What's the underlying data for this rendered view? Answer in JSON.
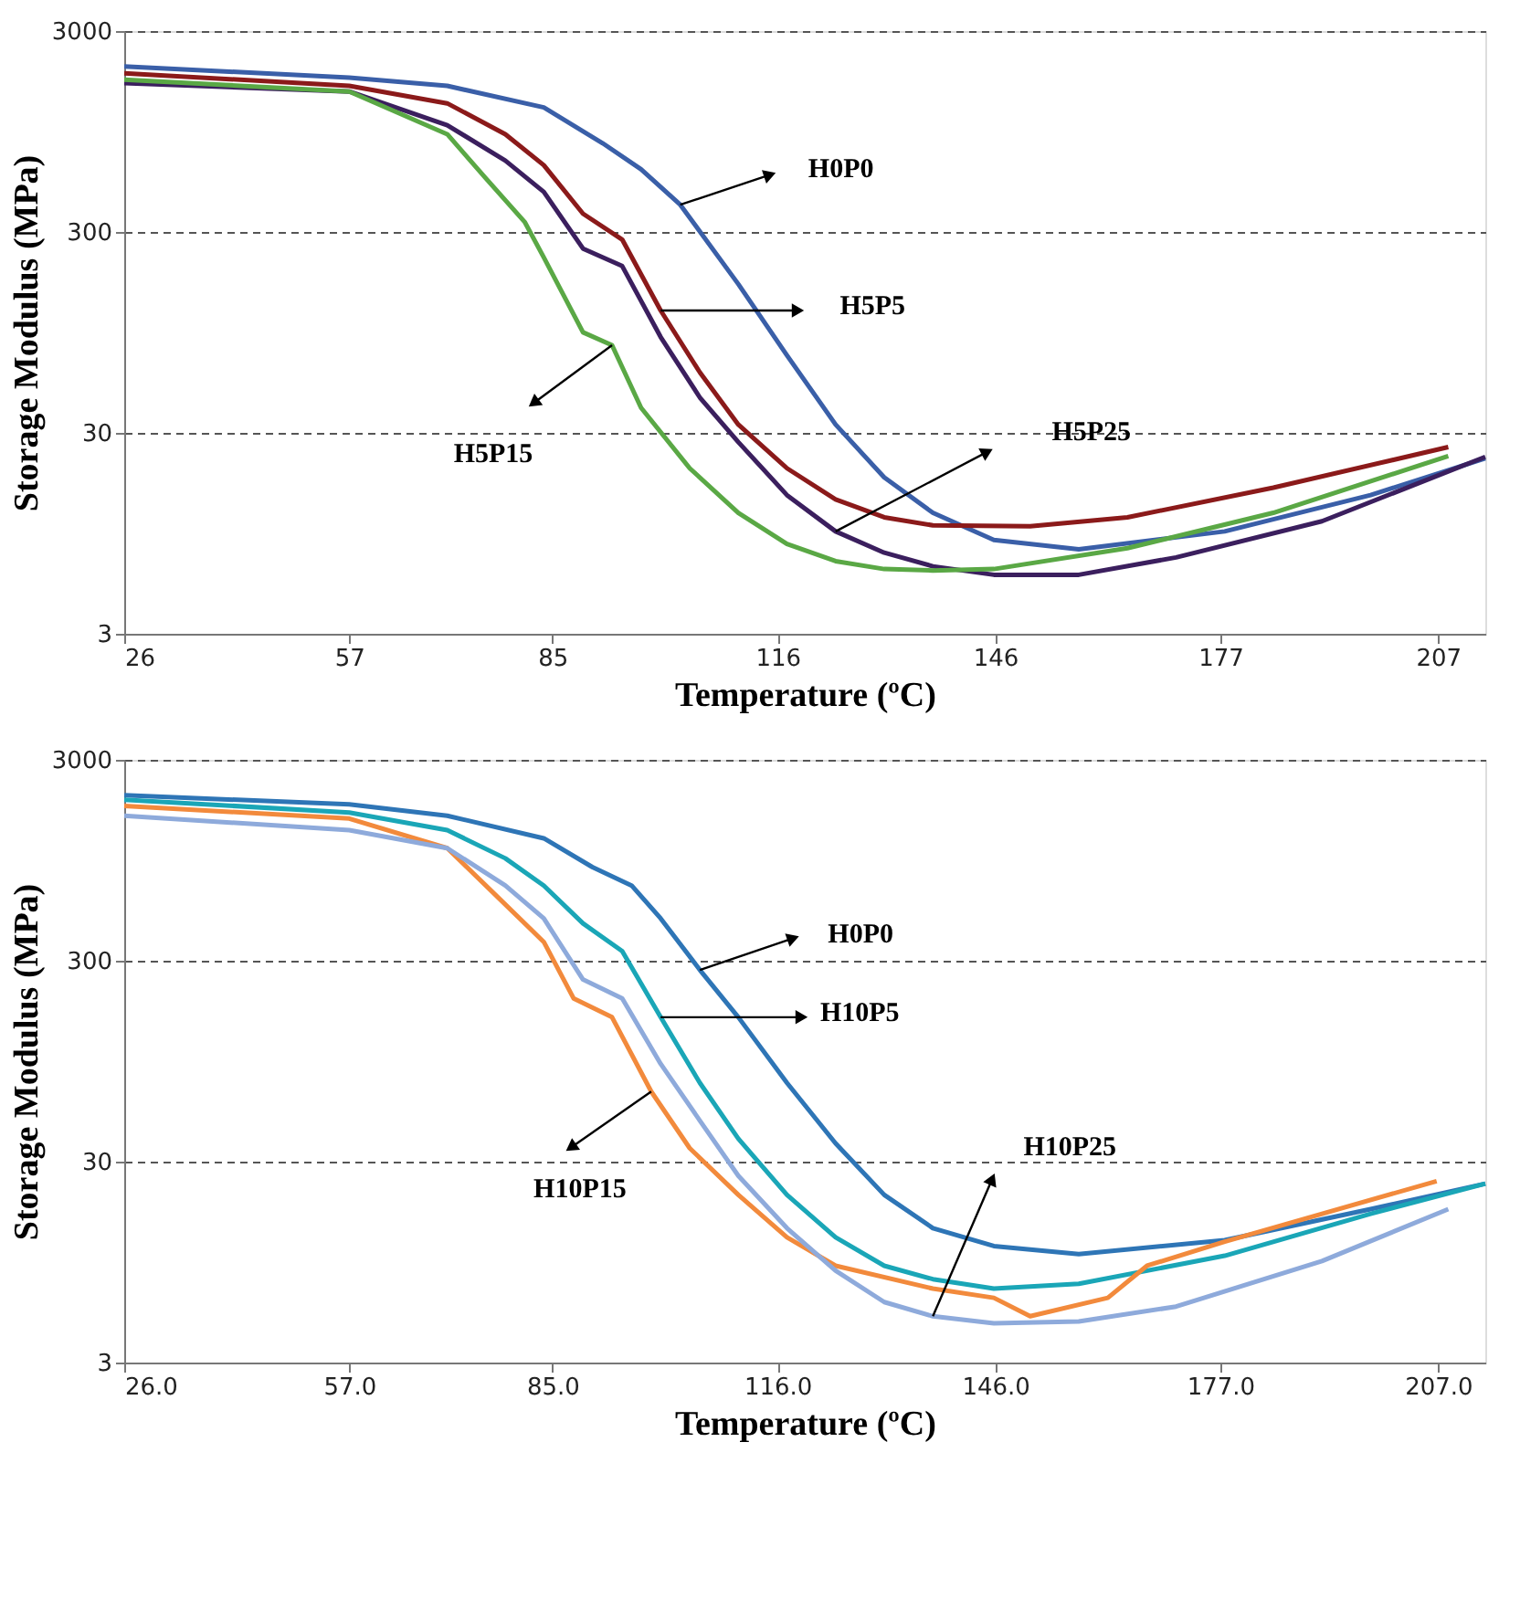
{
  "chart_data": [
    {
      "type": "line",
      "xlabel": "Temperature (ºC)",
      "ylabel": "Storage Modulus (MPa)",
      "log": "y",
      "grid": "y",
      "legend": false,
      "marker": "none",
      "line_style": "solid",
      "xlim": [
        26,
        213.5
      ],
      "xticks": [
        26,
        57,
        85,
        116,
        146,
        177,
        207
      ],
      "ylim": [
        3,
        3000
      ],
      "yticks": [
        3,
        30,
        300,
        3000
      ],
      "series": [
        {
          "color": "#3a5fa8",
          "x": [
            26,
            57,
            70.5,
            83.8,
            91.9,
            97.2,
            102.6,
            110.6,
            117.3,
            124,
            130.7,
            137.4,
            145.8,
            157.5,
            177.6,
            197.7,
            213.5
          ],
          "values": [
            2000,
            1760,
            1600,
            1250,
            830,
            615,
            410,
            165,
            73,
            33,
            18,
            12,
            8.8,
            7.9,
            9.7,
            14.7,
            22.4
          ]
        },
        {
          "color": "#8b1a1a",
          "x": [
            26,
            57,
            70.5,
            78.5,
            83.8,
            89.2,
            94.6,
            99.9,
            105.3,
            110.6,
            117.3,
            124,
            130.7,
            137.4,
            150.8,
            164.2,
            184.3,
            208.4
          ],
          "values": [
            1850,
            1600,
            1310,
            920,
            645,
            370,
            275,
            122,
            60,
            33,
            20,
            14,
            11.4,
            10.4,
            10.3,
            11.4,
            16,
            25.5
          ]
        },
        {
          "color": "#3b1f5e",
          "x": [
            26,
            57,
            70.5,
            78.5,
            83.8,
            89.2,
            94.6,
            99.9,
            105.3,
            110.6,
            117.3,
            124,
            130.7,
            137.4,
            145.8,
            157.5,
            170.9,
            191,
            213.5
          ],
          "values": [
            1650,
            1500,
            1020,
            680,
            475,
            248,
            203,
            90,
            45,
            27,
            14.7,
            9.7,
            7.6,
            6.5,
            5.9,
            5.9,
            7.2,
            10.9,
            22.8
          ]
        },
        {
          "color": "#5aa845",
          "x": [
            26,
            57,
            70.5,
            75.8,
            81.2,
            83.8,
            89.2,
            93.2,
            97.2,
            103.9,
            110.6,
            117.3,
            124,
            130.7,
            137.4,
            145.8,
            164.2,
            184.3,
            208.4
          ],
          "values": [
            1720,
            1500,
            920,
            555,
            335,
            224,
            95,
            82,
            40,
            20,
            12,
            8.4,
            6.9,
            6.3,
            6.2,
            6.3,
            8,
            12,
            23
          ]
        }
      ],
      "annotations": [
        "H0P0",
        "H5P5",
        "H5P15",
        "H5P25"
      ]
    },
    {
      "type": "line",
      "xlabel": "Temperature (ºC)",
      "ylabel": "Storage Modulus (MPa)",
      "log": "y",
      "grid": "y",
      "legend": false,
      "marker": "none",
      "line_style": "solid",
      "xlim": [
        26,
        213.5
      ],
      "xticks": [
        {
          "value": 26,
          "label": "26.0"
        },
        {
          "value": 57,
          "label": "57.0"
        },
        {
          "value": 85,
          "label": "85.0"
        },
        {
          "value": 116,
          "label": "116.0"
        },
        {
          "value": 146,
          "label": "146.0"
        },
        {
          "value": 177,
          "label": "177.0"
        },
        {
          "value": 207,
          "label": "207.0"
        }
      ],
      "ylim": [
        3,
        3000
      ],
      "yticks": [
        3,
        30,
        300,
        3000
      ],
      "series": [
        {
          "color": "#2e75b6",
          "x": [
            26,
            57,
            70.5,
            83.8,
            90.5,
            95.9,
            99.9,
            105.3,
            110.6,
            117.3,
            124,
            130.7,
            137.4,
            145.8,
            157.5,
            177.6,
            197.7,
            213.5
          ],
          "values": [
            2000,
            1800,
            1580,
            1220,
            877,
            710,
            487,
            270,
            157,
            74,
            37,
            20.5,
            14,
            11.4,
            10.4,
            12.2,
            17.4,
            23.3
          ]
        },
        {
          "color": "#1aa6b7",
          "x": [
            26,
            57,
            70.5,
            78.5,
            83.8,
            89.2,
            94.6,
            99.9,
            105.3,
            110.6,
            117.3,
            124,
            130.7,
            137.4,
            145.8,
            157.5,
            177.6,
            197.7,
            213.5
          ],
          "values": [
            1900,
            1640,
            1340,
            970,
            710,
            460,
            335,
            157,
            74,
            39,
            20.5,
            12.6,
            9.1,
            7.8,
            7,
            7.4,
            10.2,
            16.5,
            23.3
          ]
        },
        {
          "color": "#f28a3c",
          "x": [
            26,
            57,
            70.5,
            77.2,
            83.8,
            87.9,
            93.2,
            98.6,
            103.9,
            110.6,
            117.3,
            124,
            137.4,
            145.8,
            150.8,
            161.5,
            166.9,
            177.6,
            206.8
          ],
          "values": [
            1770,
            1530,
            1090,
            635,
            372,
            195,
            157,
            67,
            35,
            20.5,
            12.6,
            9.1,
            7,
            6.3,
            5.1,
            6.3,
            9.1,
            12,
            24
          ]
        },
        {
          "color": "#8eaadb",
          "x": [
            26,
            57,
            70.5,
            78.5,
            83.8,
            89.2,
            94.6,
            99.9,
            105.3,
            110.6,
            117.3,
            124,
            130.7,
            137.4,
            145.8,
            157.5,
            170.9,
            191,
            208.4
          ],
          "values": [
            1580,
            1340,
            1090,
            710,
            487,
            242,
            195,
            92,
            48,
            25.5,
            14,
            8.6,
            6,
            5.1,
            4.7,
            4.8,
            5.7,
            9.6,
            17.4
          ]
        }
      ],
      "annotations": [
        "H0P0",
        "H10P5",
        "H10P15",
        "H10P25"
      ]
    }
  ]
}
